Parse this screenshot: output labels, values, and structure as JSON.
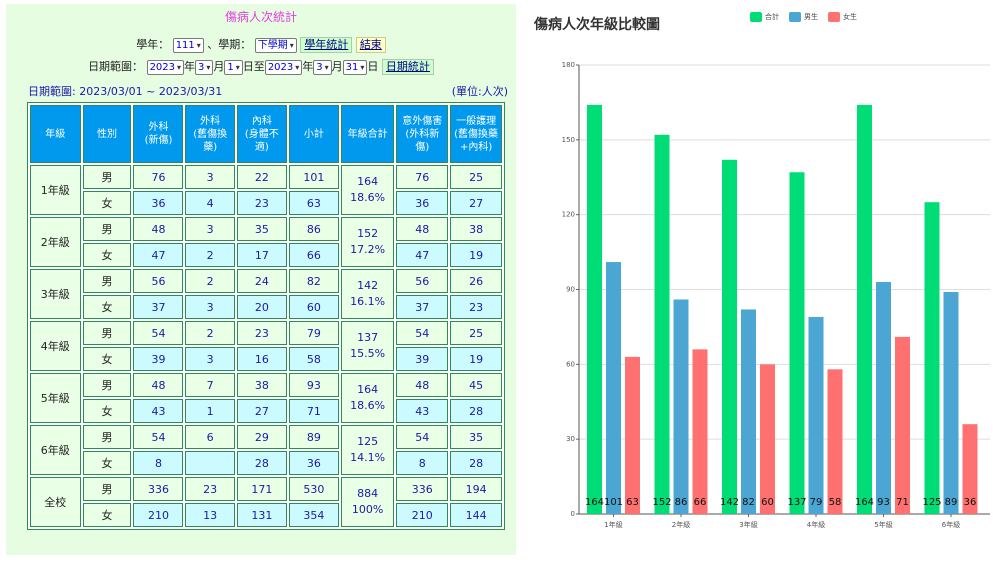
{
  "left": {
    "title": "傷病人次統計",
    "year_label": "學年：",
    "year_value": "111",
    "sep1": "、學期：",
    "term_value": "下學期",
    "year_stats_btn": "學年統計",
    "close_btn": "結束",
    "date_label": "日期範圍：",
    "from_y": "2023",
    "from_m": "3",
    "from_d": "1",
    "to_y": "2023",
    "to_m": "3",
    "to_d": "31",
    "u_year": "年",
    "u_month": "月",
    "u_day_to": "日至",
    "u_day": "日",
    "date_stats_btn": "日期統計",
    "range_text": "日期範圍: 2023/03/01 ~ 2023/03/31",
    "unit_text": "(單位:人次)",
    "headers": [
      "年級",
      "性別",
      "外科\n(新傷)",
      "外科\n(舊傷換藥)",
      "內科\n(身體不適)",
      "小計",
      "年級合計",
      "意外傷害\n(外科新傷)",
      "一般護理\n(舊傷換藥\n+內科)"
    ],
    "rows": [
      {
        "grade": "1年級",
        "total": "164",
        "pct": "18.6%",
        "m": {
          "sex": "男",
          "vals": [
            "76",
            "3",
            "22",
            "101",
            "76",
            "25"
          ]
        },
        "f": {
          "sex": "女",
          "vals": [
            "36",
            "4",
            "23",
            "63",
            "36",
            "27"
          ]
        }
      },
      {
        "grade": "2年級",
        "total": "152",
        "pct": "17.2%",
        "m": {
          "sex": "男",
          "vals": [
            "48",
            "3",
            "35",
            "86",
            "48",
            "38"
          ]
        },
        "f": {
          "sex": "女",
          "vals": [
            "47",
            "2",
            "17",
            "66",
            "47",
            "19"
          ]
        }
      },
      {
        "grade": "3年級",
        "total": "142",
        "pct": "16.1%",
        "m": {
          "sex": "男",
          "vals": [
            "56",
            "2",
            "24",
            "82",
            "56",
            "26"
          ]
        },
        "f": {
          "sex": "女",
          "vals": [
            "37",
            "3",
            "20",
            "60",
            "37",
            "23"
          ]
        }
      },
      {
        "grade": "4年級",
        "total": "137",
        "pct": "15.5%",
        "m": {
          "sex": "男",
          "vals": [
            "54",
            "2",
            "23",
            "79",
            "54",
            "25"
          ]
        },
        "f": {
          "sex": "女",
          "vals": [
            "39",
            "3",
            "16",
            "58",
            "39",
            "19"
          ]
        }
      },
      {
        "grade": "5年級",
        "total": "164",
        "pct": "18.6%",
        "m": {
          "sex": "男",
          "vals": [
            "48",
            "7",
            "38",
            "93",
            "48",
            "45"
          ]
        },
        "f": {
          "sex": "女",
          "vals": [
            "43",
            "1",
            "27",
            "71",
            "43",
            "28"
          ]
        }
      },
      {
        "grade": "6年級",
        "total": "125",
        "pct": "14.1%",
        "m": {
          "sex": "男",
          "vals": [
            "54",
            "6",
            "29",
            "89",
            "54",
            "35"
          ]
        },
        "f": {
          "sex": "女",
          "vals": [
            "8",
            "",
            "28",
            "36",
            "8",
            "28"
          ]
        }
      },
      {
        "grade": "全校",
        "total": "884",
        "pct": "100%",
        "m": {
          "sex": "男",
          "vals": [
            "336",
            "23",
            "171",
            "530",
            "336",
            "194"
          ]
        },
        "f": {
          "sex": "女",
          "vals": [
            "210",
            "13",
            "131",
            "354",
            "210",
            "144"
          ]
        }
      }
    ]
  },
  "chart_data": {
    "type": "bar",
    "title": "傷病人次年級比較圖",
    "categories": [
      "1年級",
      "2年級",
      "3年級",
      "4年級",
      "5年級",
      "6年級"
    ],
    "series": [
      {
        "name": "合計",
        "color": "#00dd77",
        "values": [
          164,
          152,
          142,
          137,
          164,
          125
        ]
      },
      {
        "name": "男生",
        "color": "#4ba6d3",
        "values": [
          101,
          86,
          82,
          79,
          93,
          89
        ]
      },
      {
        "name": "女生",
        "color": "#ff7070",
        "values": [
          63,
          66,
          60,
          58,
          71,
          36
        ]
      }
    ],
    "ylim": [
      0,
      180
    ],
    "yticks": [
      "0",
      "30",
      "60",
      "90",
      "120",
      "150",
      "180"
    ],
    "grid": true,
    "legend": "top"
  }
}
